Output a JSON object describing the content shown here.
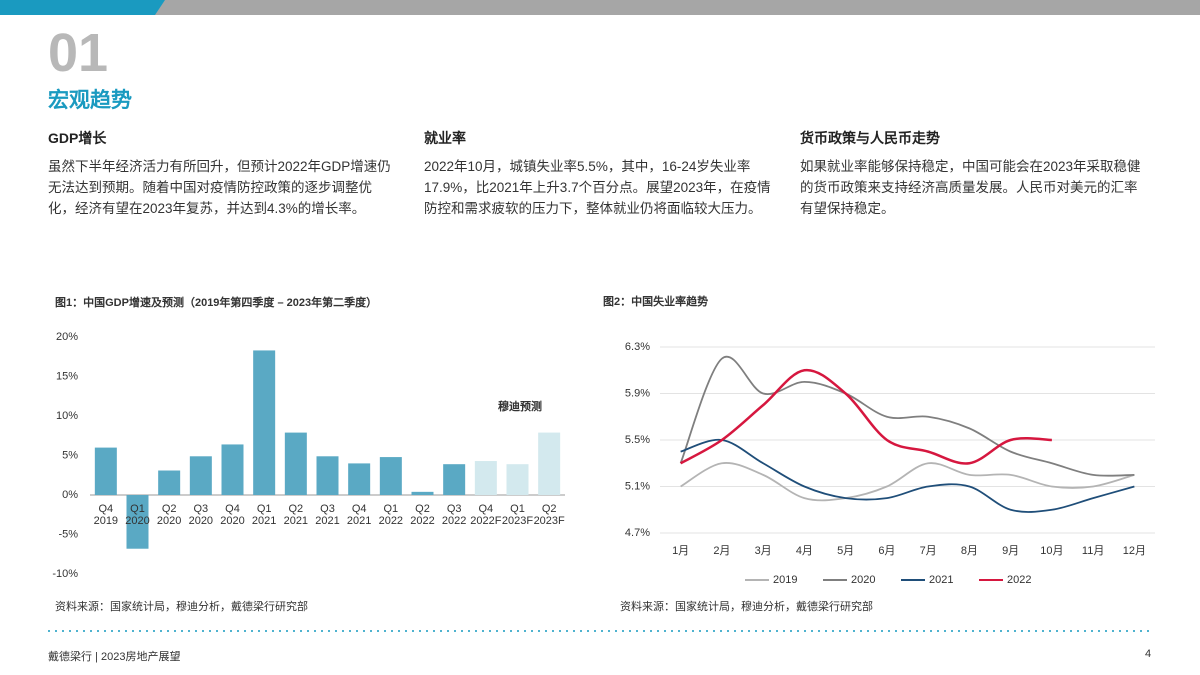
{
  "header": {
    "number": "01",
    "title": "宏观趋势"
  },
  "sections": [
    {
      "title": "GDP增长",
      "body": "虽然下半年经济活力有所回升，但预计2022年GDP增速仍无法达到预期。随着中国对疫情防控政策的逐步调整优化，经济有望在2023年复苏，并达到4.3%的增长率。"
    },
    {
      "title": "就业率",
      "body": "2022年10月，城镇失业率5.5%，其中，16-24岁失业率17.9%，比2021年上升3.7个百分点。展望2023年，在疫情防控和需求疲软的压力下，整体就业仍将面临较大压力。"
    },
    {
      "title": "货币政策与人民币走势",
      "body": "如果就业率能够保持稳定，中国可能会在2023年采取稳健的货币政策来支持经济高质量发展。人民币对美元的汇率有望保持稳定。"
    }
  ],
  "chart_data": [
    {
      "type": "bar",
      "title": "图1：中国GDP增速及预测（2019年第四季度 – 2023年第二季度）",
      "categories": [
        "Q4 2019",
        "Q1 2020",
        "Q2 2020",
        "Q3 2020",
        "Q4 2020",
        "Q1 2021",
        "Q2 2021",
        "Q3 2021",
        "Q4 2021",
        "Q1 2022",
        "Q2 2022",
        "Q3 2022",
        "Q4 2022F",
        "Q1 2023F",
        "Q2 2023F"
      ],
      "values": [
        6.0,
        -6.8,
        3.1,
        4.9,
        6.4,
        18.3,
        7.9,
        4.9,
        4.0,
        4.8,
        0.4,
        3.9,
        4.3,
        3.9,
        7.9
      ],
      "colors": [
        "#5aa9c4",
        "#5aa9c4",
        "#5aa9c4",
        "#5aa9c4",
        "#5aa9c4",
        "#5aa9c4",
        "#5aa9c4",
        "#5aa9c4",
        "#5aa9c4",
        "#5aa9c4",
        "#5aa9c4",
        "#5aa9c4",
        "#d3e9ee",
        "#d3e9ee",
        "#d3e9ee"
      ],
      "annotation": "穆迪预测",
      "ylim": [
        -10,
        20
      ],
      "yticks": [
        {
          "value": -10,
          "label": "-10%"
        },
        {
          "value": -5,
          "label": "-5%"
        },
        {
          "value": 0,
          "label": "0%"
        },
        {
          "value": 5,
          "label": "5%"
        },
        {
          "value": 10,
          "label": "10%"
        },
        {
          "value": 15,
          "label": "15%"
        },
        {
          "value": 20,
          "label": "20%"
        }
      ],
      "grid": false,
      "source": "资料来源：国家统计局，穆迪分析，戴德梁行研究部"
    },
    {
      "type": "line",
      "title": "图2：中国失业率趋势",
      "categories": [
        "1月",
        "2月",
        "3月",
        "4月",
        "5月",
        "6月",
        "7月",
        "8月",
        "9月",
        "10月",
        "11月",
        "12月"
      ],
      "series": [
        {
          "name": "2019",
          "color": "#b4b4b4",
          "values": [
            5.1,
            5.3,
            5.2,
            5.0,
            5.0,
            5.1,
            5.3,
            5.2,
            5.2,
            5.1,
            5.1,
            5.2
          ]
        },
        {
          "name": "2020",
          "color": "#7f7f7f",
          "values": [
            5.3,
            6.2,
            5.9,
            6.0,
            5.9,
            5.7,
            5.7,
            5.6,
            5.4,
            5.3,
            5.2,
            5.2
          ]
        },
        {
          "name": "2021",
          "color": "#1f4e79",
          "values": [
            5.4,
            5.5,
            5.3,
            5.1,
            5.0,
            5.0,
            5.1,
            5.1,
            4.9,
            4.9,
            5.0,
            5.1
          ]
        },
        {
          "name": "2022",
          "color": "#d6173f",
          "values": [
            5.3,
            5.5,
            5.8,
            6.1,
            5.9,
            5.5,
            5.4,
            5.3,
            5.5,
            5.5,
            null,
            null
          ]
        }
      ],
      "ylim": [
        4.7,
        6.3
      ],
      "yticks": [
        {
          "value": 4.7,
          "label": "4.7%"
        },
        {
          "value": 5.1,
          "label": "5.1%"
        },
        {
          "value": 5.5,
          "label": "5.5%"
        },
        {
          "value": 5.9,
          "label": "5.9%"
        },
        {
          "value": 6.3,
          "label": "6.3%"
        }
      ],
      "grid": true,
      "source": "资料来源：国家统计局，穆迪分析，戴德梁行研究部"
    }
  ],
  "footer": {
    "left": "戴德梁行 | 2023房地产展望",
    "page": "4"
  }
}
